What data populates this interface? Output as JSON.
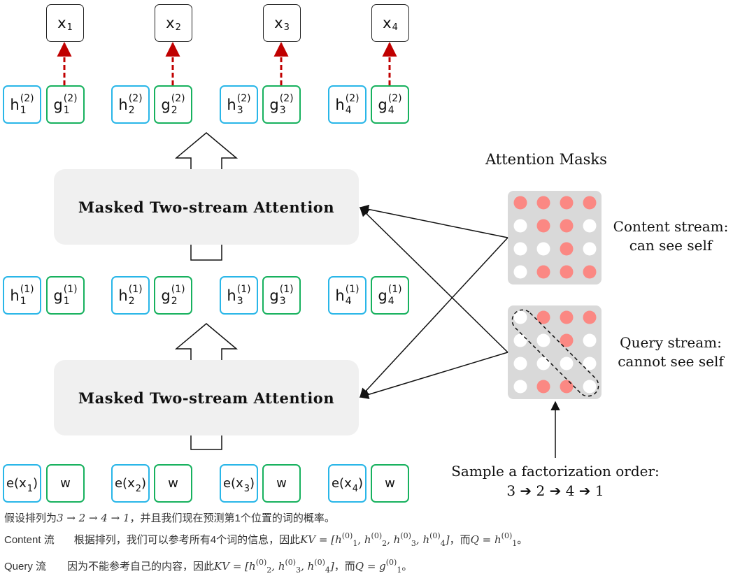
{
  "outputs": [
    {
      "base": "x",
      "sub": "1"
    },
    {
      "base": "x",
      "sub": "2"
    },
    {
      "base": "x",
      "sub": "3"
    },
    {
      "base": "x",
      "sub": "4"
    }
  ],
  "layer2": {
    "h": [
      {
        "base": "h",
        "sup": "(2)",
        "sub": "1"
      },
      {
        "base": "h",
        "sup": "(2)",
        "sub": "2"
      },
      {
        "base": "h",
        "sup": "(2)",
        "sub": "3"
      },
      {
        "base": "h",
        "sup": "(2)",
        "sub": "4"
      }
    ],
    "g": [
      {
        "base": "g",
        "sup": "(2)",
        "sub": "1"
      },
      {
        "base": "g",
        "sup": "(2)",
        "sub": "2"
      },
      {
        "base": "g",
        "sup": "(2)",
        "sub": "3"
      },
      {
        "base": "g",
        "sup": "(2)",
        "sub": "4"
      }
    ]
  },
  "layer1": {
    "h": [
      {
        "base": "h",
        "sup": "(1)",
        "sub": "1"
      },
      {
        "base": "h",
        "sup": "(1)",
        "sub": "2"
      },
      {
        "base": "h",
        "sup": "(1)",
        "sub": "3"
      },
      {
        "base": "h",
        "sup": "(1)",
        "sub": "4"
      }
    ],
    "g": [
      {
        "base": "g",
        "sup": "(1)",
        "sub": "1"
      },
      {
        "base": "g",
        "sup": "(1)",
        "sub": "2"
      },
      {
        "base": "g",
        "sup": "(1)",
        "sub": "3"
      },
      {
        "base": "g",
        "sup": "(1)",
        "sub": "4"
      }
    ]
  },
  "inputs": {
    "e": [
      {
        "prefix": "e(x",
        "sub": "1",
        "suffix": ")"
      },
      {
        "prefix": "e(x",
        "sub": "2",
        "suffix": ")"
      },
      {
        "prefix": "e(x",
        "sub": "3",
        "suffix": ")"
      },
      {
        "prefix": "e(x",
        "sub": "4",
        "suffix": ")"
      }
    ],
    "w_label": "w"
  },
  "attention_blocks": {
    "top_label": "Masked Two-stream Attention",
    "bottom_label": "Masked Two-stream Attention"
  },
  "masks": {
    "title": "Attention Masks",
    "content_label_1": "Content stream:",
    "content_label_2": "can see self",
    "query_label_1": "Query stream:",
    "query_label_2": "cannot see self",
    "content_grid": [
      [
        1,
        1,
        1,
        1
      ],
      [
        0,
        1,
        1,
        0
      ],
      [
        0,
        0,
        1,
        0
      ],
      [
        0,
        1,
        1,
        1
      ]
    ],
    "query_grid": [
      [
        0,
        1,
        1,
        1
      ],
      [
        0,
        0,
        1,
        0
      ],
      [
        0,
        0,
        0,
        0
      ],
      [
        0,
        1,
        1,
        0
      ]
    ],
    "colors": {
      "active": "#fb8883",
      "inactive": "#ffffff",
      "panel": "#d9d9d9",
      "arrow": "#c00000"
    }
  },
  "factorization": {
    "label": "Sample a factorization order:",
    "order": "3 ➔ 2 ➔ 4 ➔ 1"
  },
  "caption": {
    "line1_a": "假设排列为",
    "line1_math": "3 → 2 → 4 → 1",
    "line1_b": "，并且我们现在预测第1个位置的词的概率。",
    "line2_label": "Content 流",
    "line2_a": "根据排列，我们可以参考所有4个词的信息，因此",
    "line2_kv": "KV = [h",
    "line2_b": "，而",
    "line2_q": "Q = h",
    "line3_label": "Query 流",
    "line3_a": "因为不能参考自己的内容，因此",
    "line3_kv": "KV = [h",
    "line3_b": "，而",
    "line3_q": "Q = g"
  }
}
